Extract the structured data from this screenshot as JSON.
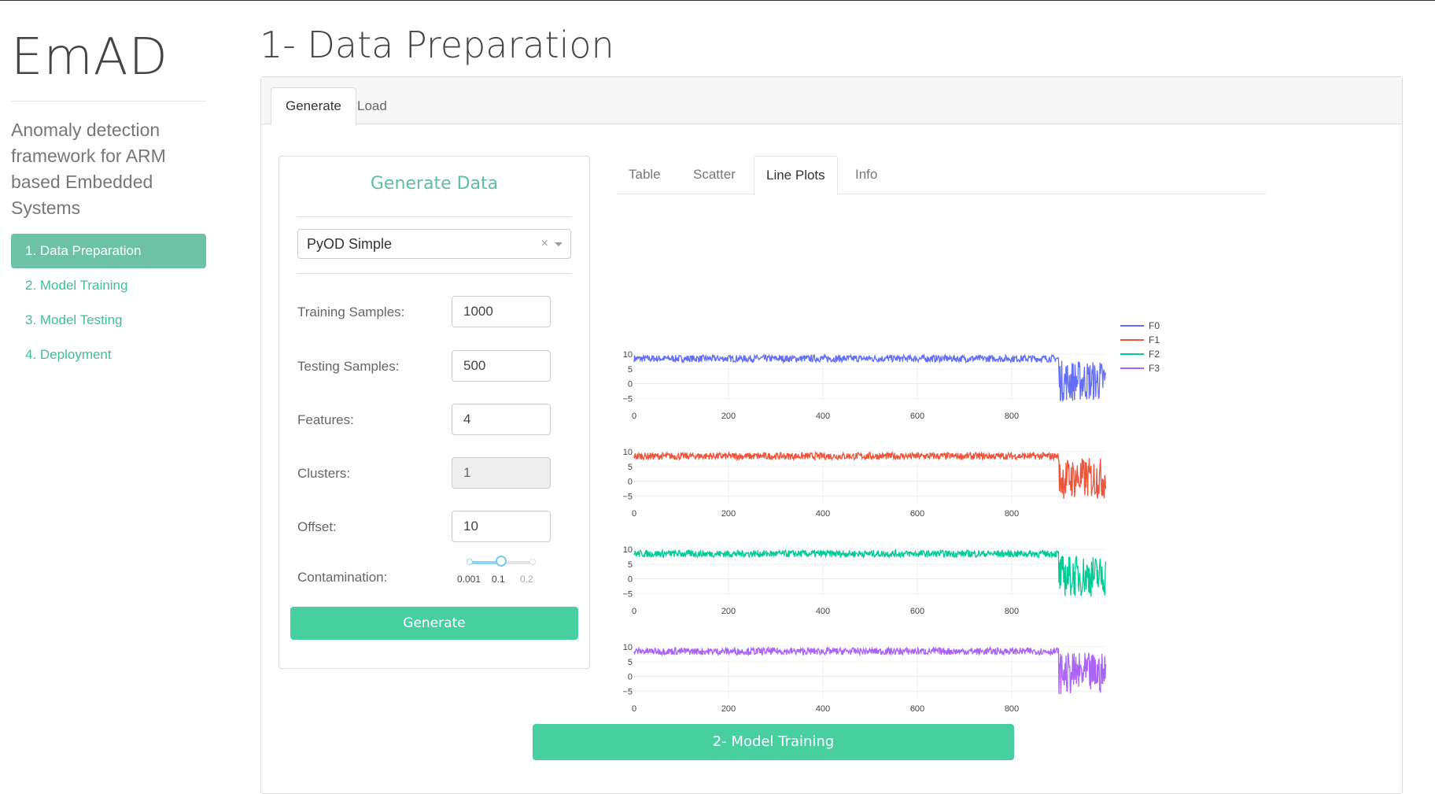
{
  "sidebar": {
    "brand": "EmAD",
    "tagline": "Anomaly detection framework for ARM based Embedded Systems",
    "nav": [
      {
        "label": "1. Data Preparation",
        "active": true
      },
      {
        "label": "2. Model Training",
        "active": false
      },
      {
        "label": "3. Model Testing",
        "active": false
      },
      {
        "label": "4. Deployment",
        "active": false
      }
    ]
  },
  "main": {
    "title": "1- Data Preparation",
    "tabs": [
      {
        "label": "Generate",
        "active": true
      },
      {
        "label": "Load",
        "active": false
      }
    ],
    "generate": {
      "title": "Generate Data",
      "dataset_select": {
        "value": "PyOD Simple",
        "clear_icon": "×"
      },
      "fields": {
        "training_samples": {
          "label": "Training Samples:",
          "value": "1000"
        },
        "testing_samples": {
          "label": "Testing Samples:",
          "value": "500"
        },
        "features": {
          "label": "Features:",
          "value": "4"
        },
        "clusters": {
          "label": "Clusters:",
          "value": "1",
          "disabled": true
        },
        "offset": {
          "label": "Offset:",
          "value": "10"
        }
      },
      "contamination": {
        "label": "Contamination:",
        "min": 0.001,
        "max": 0.2,
        "value": 0.1,
        "marks": [
          "0.001",
          "0.1",
          "0.2"
        ]
      },
      "button": "Generate"
    },
    "viz_tabs": [
      {
        "label": "Table",
        "active": false
      },
      {
        "label": "Scatter",
        "active": false
      },
      {
        "label": "Line Plots",
        "active": true
      },
      {
        "label": "Info",
        "active": false
      }
    ],
    "next_button": "2- Model Training"
  },
  "colors": {
    "accent": "#48cfa0",
    "nav_active_bg": "#6dc2a6",
    "nav_text": "#3fbf98",
    "F0": "#636efa",
    "F1": "#ef553b",
    "F2": "#00cc96",
    "F3": "#ab63fa"
  },
  "chart_data": {
    "type": "line",
    "subplots": 4,
    "shared_x": true,
    "xlim": [
      0,
      1000
    ],
    "ylim": [
      -5,
      10
    ],
    "xticks": [
      "0",
      "200",
      "400",
      "600",
      "800"
    ],
    "yticks": [
      "10",
      "5",
      "0",
      "−5"
    ],
    "legend_placement": "top-right",
    "series": [
      {
        "name": "F0",
        "color": "#636efa",
        "normal_level": 8.5,
        "normal_spread": 1.2,
        "anomaly_start_x": 900,
        "anomaly_range": [
          -6,
          8
        ]
      },
      {
        "name": "F1",
        "color": "#ef553b",
        "normal_level": 8.5,
        "normal_spread": 1.2,
        "anomaly_start_x": 900,
        "anomaly_range": [
          -6,
          8
        ]
      },
      {
        "name": "F2",
        "color": "#00cc96",
        "normal_level": 8.5,
        "normal_spread": 1.2,
        "anomaly_start_x": 900,
        "anomaly_range": [
          -6,
          8
        ]
      },
      {
        "name": "F3",
        "color": "#ab63fa",
        "normal_level": 8.5,
        "normal_spread": 1.2,
        "anomaly_start_x": 900,
        "anomaly_range": [
          -6,
          8
        ]
      }
    ]
  }
}
